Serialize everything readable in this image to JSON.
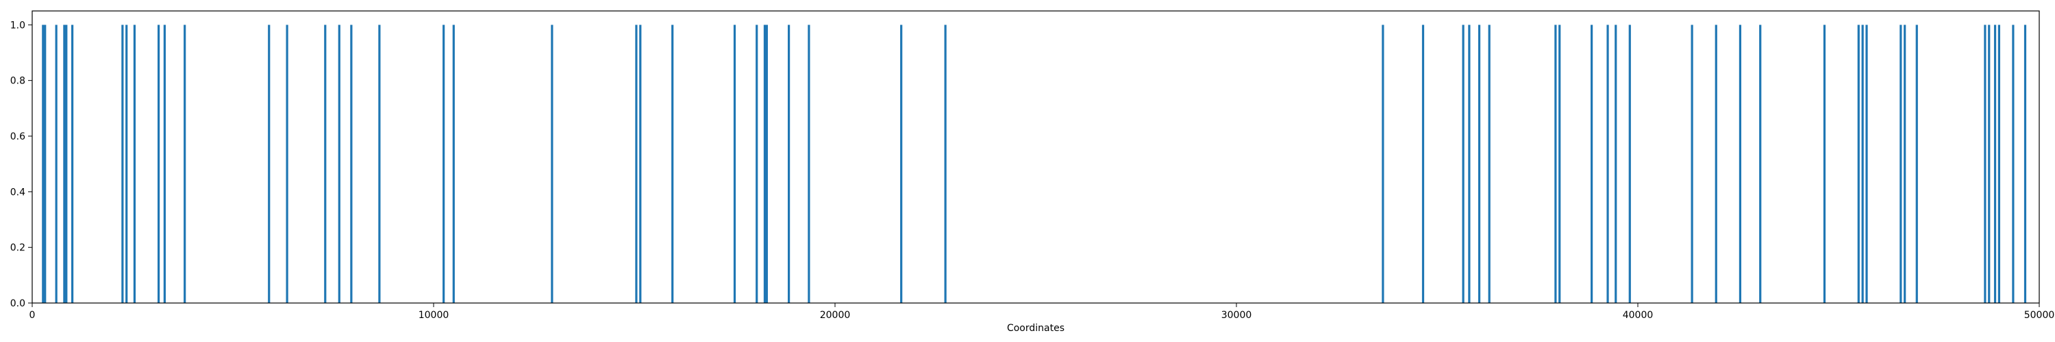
{
  "chart_data": {
    "type": "bar",
    "title": "",
    "xlabel": "Coordinates",
    "ylabel": "",
    "xlim": [
      0,
      50000
    ],
    "ylim": [
      0,
      1.05
    ],
    "grid": false,
    "legend": "none",
    "bar_color": "#1f77b4",
    "xticks": [
      0,
      10000,
      20000,
      30000,
      40000,
      50000
    ],
    "yticks": [
      0.0,
      0.2,
      0.4,
      0.6,
      0.8,
      1.0
    ],
    "xtick_labels": [
      "0",
      "10000",
      "20000",
      "30000",
      "40000",
      "50000"
    ],
    "ytick_labels": [
      "0.0",
      "0.2",
      "0.4",
      "0.6",
      "0.8",
      "1.0"
    ],
    "x": [
      270,
      320,
      600,
      800,
      850,
      1000,
      2250,
      2350,
      2550,
      3150,
      3300,
      3800,
      5900,
      6350,
      7300,
      7650,
      7950,
      8650,
      10250,
      10500,
      12950,
      15050,
      15150,
      15950,
      17500,
      18050,
      18250,
      18300,
      18850,
      19350,
      21650,
      22750,
      33650,
      34650,
      35650,
      35800,
      36050,
      36300,
      37950,
      38050,
      38850,
      39250,
      39450,
      39800,
      41350,
      41950,
      42550,
      43050,
      44650,
      45500,
      45600,
      45700,
      46550,
      46650,
      46950,
      48650,
      48750,
      48900,
      49000,
      49350,
      49650
    ],
    "values": [
      1,
      1,
      1,
      1,
      1,
      1,
      1,
      1,
      1,
      1,
      1,
      1,
      1,
      1,
      1,
      1,
      1,
      1,
      1,
      1,
      1,
      1,
      1,
      1,
      1,
      1,
      1,
      1,
      1,
      1,
      1,
      1,
      1,
      1,
      1,
      1,
      1,
      1,
      1,
      1,
      1,
      1,
      1,
      1,
      1,
      1,
      1,
      1,
      1,
      1,
      1,
      1,
      1,
      1,
      1,
      1,
      1,
      1,
      1,
      1,
      1
    ]
  }
}
